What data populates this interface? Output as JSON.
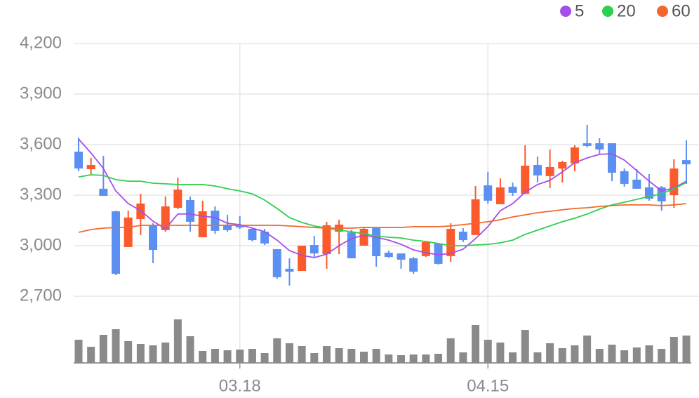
{
  "chart_data": {
    "type": "candlestick",
    "categories": [
      null,
      null,
      null,
      null,
      null,
      null,
      null,
      null,
      null,
      null,
      null,
      null,
      null,
      "03.18",
      null,
      null,
      null,
      null,
      null,
      null,
      null,
      null,
      null,
      null,
      null,
      null,
      null,
      null,
      null,
      null,
      null,
      null,
      null,
      "04.15",
      null,
      null,
      null,
      null,
      null,
      null,
      null,
      null,
      null,
      null,
      null,
      null,
      null,
      null,
      null,
      null
    ],
    "open": [
      3558,
      3454,
      3338,
      3204,
      2992,
      3158,
      3117,
      3092,
      3225,
      3271,
      3050,
      3208,
      3125,
      3125,
      3100,
      3083,
      2979,
      2863,
      2850,
      3004,
      2950,
      3083,
      3079,
      3000,
      3104,
      2958,
      2954,
      2925,
      2938,
      3013,
      2938,
      3083,
      3063,
      3358,
      3246,
      3350,
      3308,
      3479,
      3413,
      3458,
      3488,
      3608,
      3608,
      3608,
      3442,
      3392,
      3346,
      3346,
      3300,
      3508
    ],
    "high": [
      3642,
      3521,
      3533,
      3208,
      3208,
      3308,
      3133,
      3292,
      3404,
      3292,
      3267,
      3233,
      3183,
      3175,
      3108,
      3100,
      2979,
      2925,
      3000,
      3058,
      3142,
      3154,
      3092,
      3113,
      3104,
      2971,
      2954,
      2933,
      3025,
      3013,
      3133,
      3104,
      3354,
      3438,
      3400,
      3375,
      3596,
      3529,
      3571,
      3504,
      3596,
      3717,
      3638,
      3608,
      3458,
      3454,
      3425,
      3354,
      3513,
      3625
    ],
    "low": [
      3442,
      3417,
      3296,
      2825,
      2992,
      3063,
      2896,
      3083,
      3217,
      3083,
      3050,
      3071,
      3083,
      3100,
      3025,
      3004,
      2804,
      2763,
      2850,
      2929,
      2863,
      2950,
      2925,
      3000,
      2875,
      2929,
      2863,
      2833,
      2933,
      2888,
      2904,
      3021,
      3063,
      3250,
      3246,
      3296,
      3308,
      3375,
      3342,
      3375,
      3442,
      3583,
      3542,
      3383,
      3350,
      3338,
      3267,
      3208,
      3225,
      3367
    ],
    "close": [
      3458,
      3479,
      3296,
      2833,
      3167,
      3250,
      2975,
      3233,
      3333,
      3142,
      3204,
      3088,
      3092,
      3108,
      3033,
      3013,
      2813,
      2846,
      3000,
      2954,
      3121,
      3125,
      2925,
      3100,
      2938,
      2933,
      2917,
      2846,
      3021,
      2892,
      3100,
      3033,
      3275,
      3267,
      3346,
      3313,
      3475,
      3417,
      3467,
      3496,
      3583,
      3592,
      3571,
      3433,
      3367,
      3338,
      3279,
      3263,
      3458,
      3483
    ],
    "up_color": "#fb5a2c",
    "down_color": "#5b8ff2",
    "series": [
      {
        "name": "5",
        "color": "#a64ee8",
        "values": [
          3633,
          3550,
          3458,
          3325,
          3250,
          3208,
          3146,
          3100,
          3188,
          3188,
          3175,
          3167,
          3133,
          3125,
          3104,
          3083,
          3033,
          2971,
          2942,
          2929,
          2950,
          3000,
          3042,
          3063,
          3050,
          3033,
          3008,
          2975,
          2958,
          2946,
          2954,
          2979,
          3042,
          3113,
          3208,
          3250,
          3317,
          3363,
          3388,
          3438,
          3492,
          3521,
          3542,
          3546,
          3508,
          3446,
          3383,
          3325,
          3342,
          3383
        ]
      },
      {
        "name": "20",
        "color": "#2fcf4f",
        "values": [
          3408,
          3421,
          3417,
          3392,
          3383,
          3383,
          3371,
          3367,
          3363,
          3363,
          3363,
          3354,
          3338,
          3325,
          3308,
          3271,
          3221,
          3167,
          3138,
          3117,
          3104,
          3092,
          3083,
          3071,
          3058,
          3050,
          3046,
          3033,
          3025,
          3013,
          3000,
          3000,
          3004,
          3008,
          3017,
          3033,
          3067,
          3092,
          3117,
          3142,
          3163,
          3188,
          3217,
          3242,
          3258,
          3275,
          3292,
          3308,
          3338,
          3375
        ]
      },
      {
        "name": "60",
        "color": "#f2682c",
        "values": [
          3079,
          3096,
          3104,
          3108,
          3108,
          3121,
          3121,
          3121,
          3121,
          3121,
          3121,
          3121,
          3121,
          3121,
          3121,
          3121,
          3121,
          3117,
          3113,
          3108,
          3104,
          3104,
          3104,
          3108,
          3108,
          3108,
          3108,
          3113,
          3113,
          3113,
          3117,
          3125,
          3133,
          3142,
          3154,
          3171,
          3183,
          3196,
          3204,
          3213,
          3221,
          3225,
          3233,
          3238,
          3242,
          3242,
          3242,
          3238,
          3242,
          3250
        ]
      }
    ],
    "volume": [
      33,
      23,
      40,
      48,
      31,
      27,
      25,
      29,
      62,
      38,
      17,
      20,
      18,
      19,
      20,
      14,
      35,
      28,
      24,
      14,
      24,
      21,
      20,
      16,
      20,
      12,
      11,
      12,
      12,
      13,
      35,
      15,
      54,
      33,
      29,
      15,
      47,
      15,
      28,
      21,
      25,
      39,
      20,
      26,
      18,
      22,
      25,
      20,
      37,
      39
    ],
    "volume_color": "#8a8a8a",
    "ylim": [
      2700,
      4200
    ],
    "yticks": [
      {
        "value": 2700,
        "label": "2,700"
      },
      {
        "value": 3000,
        "label": "3,000"
      },
      {
        "value": 3300,
        "label": "3,300"
      },
      {
        "value": 3600,
        "label": "3,600"
      },
      {
        "value": 3900,
        "label": "3,900"
      },
      {
        "value": 4200,
        "label": "4,200"
      }
    ],
    "grid": true
  }
}
